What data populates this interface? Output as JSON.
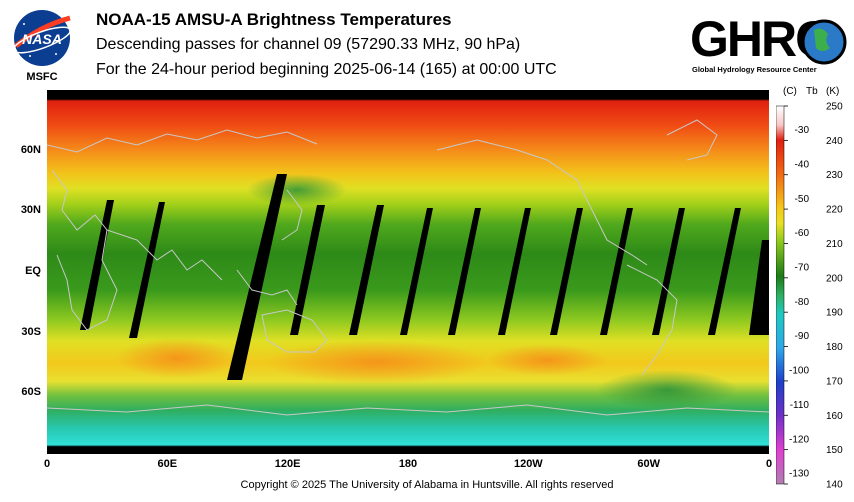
{
  "header": {
    "title": "NOAA-15 AMSU-A Brightness Temperatures",
    "subtitle": "Descending passes for channel 09 (57290.33 MHz, 90 hPa)",
    "period": "For the 24-hour period beginning 2025-06-14 (165) at 00:00 UTC"
  },
  "logos": {
    "nasa_text": "NASA",
    "nasa_sub": "MSFC",
    "ghrc_text": "GHRC",
    "ghrc_sub": "Global Hydrology Resource Center"
  },
  "map": {
    "lat_labels": [
      {
        "text": "60N",
        "lat": 60
      },
      {
        "text": "30N",
        "lat": 30
      },
      {
        "text": "EQ",
        "lat": 0
      },
      {
        "text": "30S",
        "lat": -30
      },
      {
        "text": "60S",
        "lat": -60
      }
    ],
    "lon_labels": [
      {
        "text": "0",
        "lon": 0
      },
      {
        "text": "60E",
        "lon": 60
      },
      {
        "text": "120E",
        "lon": 120
      },
      {
        "text": "180",
        "lon": 180
      },
      {
        "text": "120W",
        "lon": 240
      },
      {
        "text": "60W",
        "lon": 300
      },
      {
        "text": "0",
        "lon": 360
      }
    ],
    "lat_range": [
      -90,
      90
    ],
    "lon_range": [
      0,
      360
    ]
  },
  "colorbar": {
    "header_c": "(C)",
    "header_tb": "Tb",
    "header_k": "(K)",
    "k_range": [
      140,
      250
    ],
    "k_ticks": [
      "250",
      "240",
      "230",
      "220",
      "210",
      "200",
      "190",
      "180",
      "170",
      "160",
      "150",
      "140"
    ],
    "c_ticks": [
      "-30",
      "-40",
      "-50",
      "-60",
      "-70",
      "-80",
      "-90",
      "-100",
      "-110",
      "-120",
      "-130"
    ]
  },
  "footer": {
    "copyright": "Copyright © 2025 The University of Alabama in Huntsville.  All rights reserved"
  }
}
